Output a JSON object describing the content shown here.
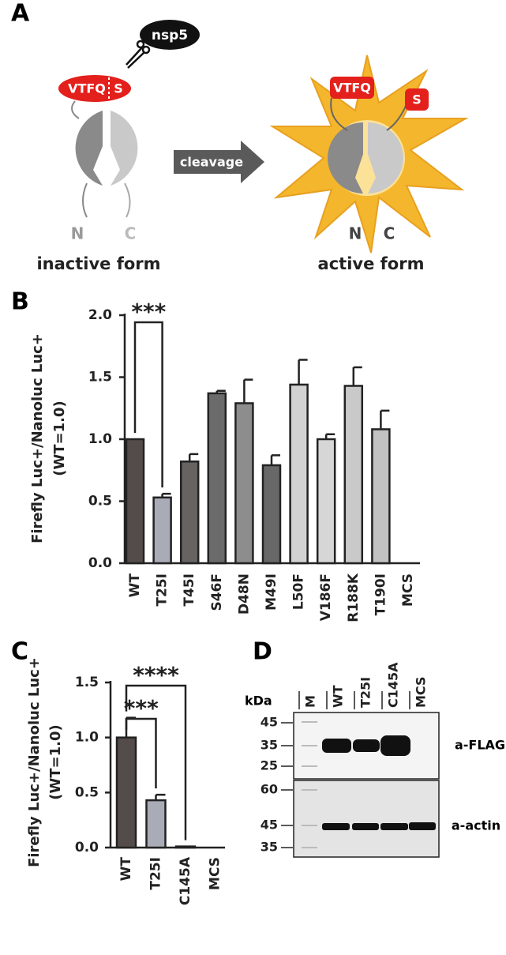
{
  "panel_labels": [
    "A",
    "B",
    "C",
    "D"
  ],
  "diagram": {
    "protease": "nsp5",
    "inactive": {
      "site_left": "VTFQ",
      "site_right": "S",
      "n_term": "N",
      "c_term": "C",
      "caption": "inactive form"
    },
    "arrow": "cleavage",
    "active": {
      "site_left": "VTFQ",
      "site_right": "S",
      "n_term": "N",
      "c_term": "C",
      "caption": "active form"
    }
  },
  "chart_data": [
    {
      "type": "bar",
      "ylabel": [
        "Firefly Luc+/Nanoluc Luc+",
        "(WT=1.0)"
      ],
      "categories": [
        "WT",
        "T25I",
        "T45I",
        "S46F",
        "D48N",
        "M49I",
        "L50F",
        "V186F",
        "R188K",
        "T190I",
        "MCS"
      ],
      "values": [
        1.0,
        0.53,
        0.82,
        1.37,
        1.29,
        0.79,
        1.44,
        1.0,
        1.43,
        1.08,
        0
      ],
      "errors": [
        null,
        0.03,
        0.06,
        0.02,
        0.19,
        0.08,
        0.2,
        0.04,
        0.15,
        0.15,
        null
      ],
      "colors": [
        "#544c4a",
        "#a9abb6",
        "#676363",
        "#6b6b6b",
        "#8d8d8d",
        "#686868",
        "#d2d2d2",
        "#d6d6d6",
        "#c9c9c9",
        "#c2c2c2",
        "#cccccc"
      ],
      "ylim": [
        0,
        2.0
      ],
      "yticks": [
        {
          "value": 0,
          "label": "0.0"
        },
        0.5,
        {
          "value": 1,
          "label": "1.0"
        },
        1.5,
        {
          "value": 2,
          "label": "2.0"
        }
      ],
      "grid": false,
      "annotations": [
        "***"
      ]
    },
    {
      "type": "bar",
      "ylabel": [
        "Firefly Luc+/Nanoluc Luc+",
        "(WT=1.0)"
      ],
      "categories": [
        "WT",
        "T25I",
        "C145A",
        "MCS"
      ],
      "values": [
        1.0,
        0.43,
        0.01,
        0
      ],
      "errors": [
        0.18,
        0.05,
        null,
        null
      ],
      "colors": [
        "#544c4a",
        "#a9abb6",
        "#d0d0d0",
        "#d0d0d0"
      ],
      "ylim": [
        0,
        1.5
      ],
      "yticks": [
        {
          "value": 0,
          "label": "0.0"
        },
        0.5,
        {
          "value": 1,
          "label": "1.0"
        },
        1.5
      ],
      "grid": false,
      "annotations": [
        "****",
        "***"
      ]
    }
  ],
  "blot": {
    "unit": "kDa",
    "lanes": [
      "M",
      "WT",
      "T25I",
      "C145A",
      "MCS"
    ],
    "top": {
      "markers": [
        45,
        35,
        25
      ],
      "label": "a-FLAG"
    },
    "bottom": {
      "markers": [
        60,
        45,
        35
      ],
      "label": "a-actin"
    }
  }
}
